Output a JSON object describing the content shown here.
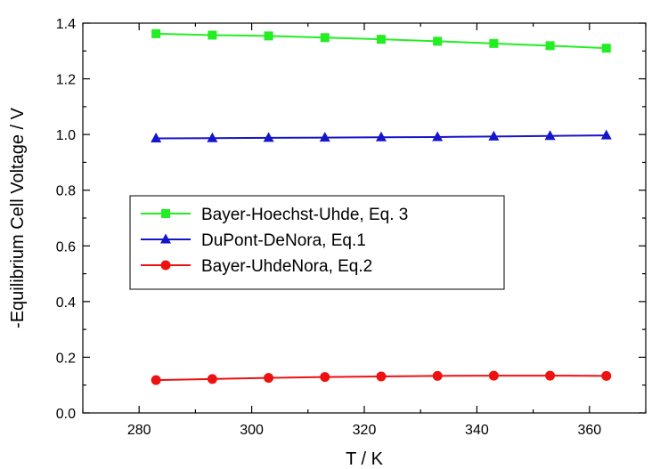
{
  "chart_data": {
    "type": "line",
    "xlabel": "T / K",
    "ylabel": "-Equilibrium Cell Voltage / V",
    "xlim": [
      270,
      370
    ],
    "ylim": [
      0.0,
      1.4
    ],
    "xticks": [
      280,
      300,
      320,
      340,
      360
    ],
    "xtick_labels": [
      "280",
      "300",
      "320",
      "340",
      "360"
    ],
    "yticks": [
      0.0,
      0.2,
      0.4,
      0.6,
      0.8,
      1.0,
      1.2,
      1.4
    ],
    "ytick_labels": [
      "0.0",
      "0.2",
      "0.4",
      "0.6",
      "0.8",
      "1.0",
      "1.2",
      "1.4"
    ],
    "grid": false,
    "legend_position": "center-left",
    "x": [
      283,
      293,
      303,
      313,
      323,
      333,
      343,
      353,
      363
    ],
    "series": [
      {
        "name": "Bayer-Hoechst-Uhde, Eq. 3",
        "color": "#22ee22",
        "marker": "square",
        "values": [
          1.362,
          1.357,
          1.354,
          1.348,
          1.342,
          1.335,
          1.327,
          1.319,
          1.31
        ]
      },
      {
        "name": "DuPont-DeNora, Eq.1",
        "color": "#1515cc",
        "marker": "triangle",
        "values": [
          0.986,
          0.987,
          0.988,
          0.989,
          0.99,
          0.991,
          0.993,
          0.995,
          0.997
        ]
      },
      {
        "name": "Bayer-UhdeNora, Eq.2",
        "color": "#ee1111",
        "marker": "circle",
        "values": [
          0.118,
          0.122,
          0.126,
          0.129,
          0.131,
          0.133,
          0.134,
          0.134,
          0.133
        ]
      }
    ]
  }
}
